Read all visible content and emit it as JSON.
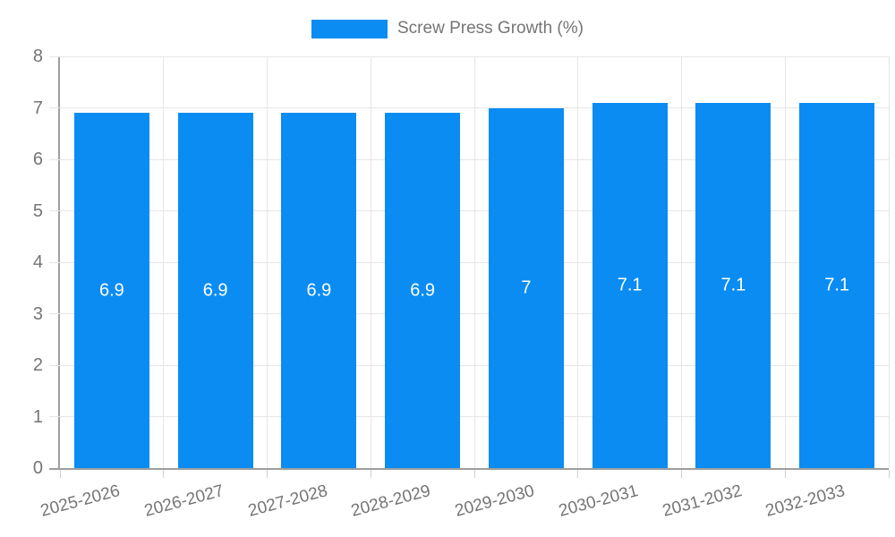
{
  "legend": {
    "label": "Screw Press Growth (%)"
  },
  "chart_data": {
    "type": "bar",
    "title": "",
    "xlabel": "",
    "ylabel": "",
    "categories": [
      "2025-2026",
      "2026-2027",
      "2027-2028",
      "2028-2029",
      "2029-2030",
      "2030-2031",
      "2031-2032",
      "2032-2033"
    ],
    "series": [
      {
        "name": "Screw Press Growth (%)",
        "values": [
          6.9,
          6.9,
          6.9,
          6.9,
          7,
          7.1,
          7.1,
          7.1
        ],
        "value_labels": [
          "6.9",
          "6.9",
          "6.9",
          "6.9",
          "7",
          "7.1",
          "7.1",
          "7.1"
        ]
      }
    ],
    "ylim": [
      0,
      8
    ],
    "yticks": [
      0,
      1,
      2,
      3,
      4,
      5,
      6,
      7,
      8
    ],
    "grid": true,
    "legend_position": "top-center",
    "colors": {
      "bar": "#0a8cf2",
      "bar_value_text": "#ffffff",
      "axis_line": "#9e9e9e",
      "gridline": "#e6e6e6",
      "tick_text": "#757575",
      "legend_text": "#757575",
      "background": "#ffffff"
    }
  }
}
